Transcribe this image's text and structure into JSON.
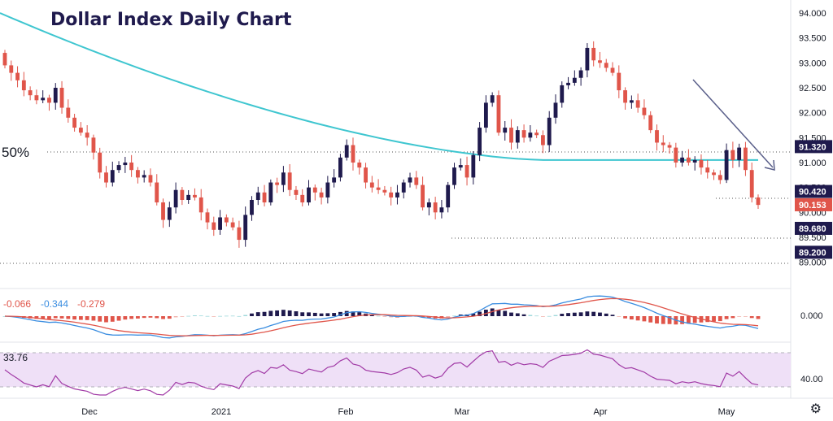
{
  "title": "Dollar Index Daily Chart",
  "fib_label": "50%",
  "colors": {
    "up": "#1f1a4d",
    "down": "#e0554a",
    "ma": "#3fc6d0",
    "macd_line": "#3a8de0",
    "signal_line": "#e0554a",
    "rsi_line": "#a13aa6",
    "rsi_band": "#efe0f7",
    "arrow": "#5a5f8a",
    "axis_text": "#131722",
    "tag_navy": "#1f1a4d",
    "tag_red": "#e0554a"
  },
  "price_axis": {
    "ticks": [
      "94.000",
      "93.500",
      "93.000",
      "92.500",
      "92.000",
      "91.500",
      "91.000",
      "90.500",
      "90.000",
      "89.500",
      "89.000"
    ],
    "min": 88.75,
    "max": 94.0
  },
  "price_tags": [
    {
      "label": "91.320",
      "value": 91.32,
      "style": "navy"
    },
    {
      "label": "90.420",
      "value": 90.42,
      "style": "navy"
    },
    {
      "label": "90.153",
      "value": 90.153,
      "style": "red"
    },
    {
      "label": "89.680",
      "value": 89.68,
      "style": "navy"
    },
    {
      "label": "89.200",
      "value": 89.2,
      "style": "navy"
    }
  ],
  "time_axis": [
    "Dec",
    "2021",
    "Feb",
    "Mar",
    "Apr",
    "May"
  ],
  "macd": {
    "values": [
      "-0.066",
      "-0.344",
      "-0.279"
    ],
    "axis_tick": "0.000"
  },
  "rsi": {
    "value": "33.76",
    "axis_tick": "40.00"
  },
  "chart_data": {
    "type": "candlestick",
    "title": "Dollar Index Daily Chart",
    "x_labels": [
      "Dec",
      "2021",
      "Feb",
      "Mar",
      "Apr",
      "May"
    ],
    "closes": [
      92.95,
      92.8,
      92.65,
      92.45,
      92.35,
      92.25,
      92.3,
      92.2,
      92.5,
      92.1,
      91.9,
      91.7,
      91.6,
      91.5,
      91.2,
      90.8,
      90.6,
      90.85,
      90.95,
      91.0,
      90.85,
      90.7,
      90.75,
      90.6,
      90.2,
      89.85,
      90.1,
      90.45,
      90.25,
      90.35,
      90.3,
      90.0,
      89.8,
      89.65,
      89.9,
      89.8,
      89.7,
      89.45,
      89.95,
      90.25,
      90.4,
      90.2,
      90.6,
      90.55,
      90.8,
      90.45,
      90.35,
      90.2,
      90.5,
      90.4,
      90.3,
      90.6,
      90.7,
      91.1,
      91.35,
      91.0,
      90.9,
      90.6,
      90.5,
      90.45,
      90.4,
      90.3,
      90.4,
      90.6,
      90.7,
      90.55,
      90.1,
      90.2,
      90.0,
      90.1,
      90.55,
      90.9,
      90.95,
      90.7,
      91.15,
      91.7,
      92.2,
      92.35,
      91.6,
      91.7,
      91.4,
      91.65,
      91.5,
      91.6,
      91.55,
      91.35,
      91.9,
      92.2,
      92.55,
      92.6,
      92.7,
      92.85,
      93.3,
      93.05,
      93.0,
      92.9,
      92.8,
      92.45,
      92.2,
      92.25,
      92.1,
      91.95,
      91.65,
      91.4,
      91.35,
      91.3,
      91.0,
      91.1,
      91.0,
      91.05,
      90.9,
      90.8,
      90.75,
      90.65,
      91.25,
      91.05,
      91.3,
      90.85,
      90.3,
      90.15
    ],
    "moving_average": {
      "name": "",
      "start": 94.0,
      "end": 91.05
    },
    "annotations": [
      "50%",
      "91.320",
      "90.420",
      "89.680",
      "89.200"
    ],
    "price_range": [
      88.75,
      94.0
    ],
    "macd_values": [
      -0.066,
      -0.344,
      -0.279
    ],
    "rsi_value": 33.76
  }
}
